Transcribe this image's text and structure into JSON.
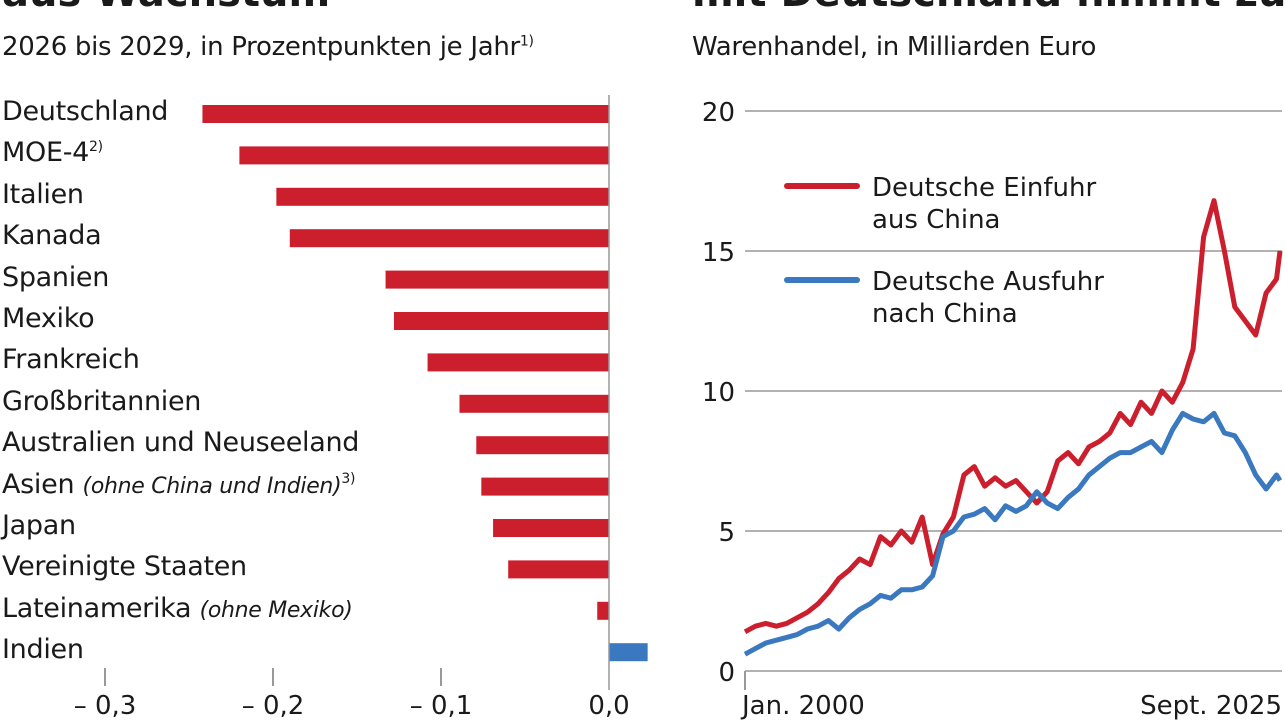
{
  "left": {
    "title": "aus Wachstum",
    "subtitle": "2026 bis 2029, in Prozentpunkten je Jahr",
    "subtitle_note": "1)"
  },
  "right": {
    "title": "mit Deutschland nimmt zu",
    "subtitle": "Warenhandel, in Milliarden Euro"
  },
  "colors": {
    "negative": "#cc1f2d",
    "positive": "#3a78bf",
    "axis": "#999999"
  },
  "chart_data": [
    {
      "type": "bar",
      "orientation": "horizontal",
      "categories": [
        {
          "label": "Deutschland",
          "italic": "",
          "note": ""
        },
        {
          "label": "MOE-4",
          "italic": "",
          "note": "2)"
        },
        {
          "label": "Italien",
          "italic": "",
          "note": ""
        },
        {
          "label": "Kanada",
          "italic": "",
          "note": ""
        },
        {
          "label": "Spanien",
          "italic": "",
          "note": ""
        },
        {
          "label": "Mexiko",
          "italic": "",
          "note": ""
        },
        {
          "label": "Frankreich",
          "italic": "",
          "note": ""
        },
        {
          "label": "Großbritannien",
          "italic": "",
          "note": ""
        },
        {
          "label": "Australien und Neuseeland",
          "italic": "",
          "note": ""
        },
        {
          "label": "Asien ",
          "italic": "(ohne China und Indien)",
          "note": "3)"
        },
        {
          "label": "Japan",
          "italic": "",
          "note": ""
        },
        {
          "label": "Vereinigte Staaten",
          "italic": "",
          "note": ""
        },
        {
          "label": "Lateinamerika ",
          "italic": "(ohne Mexiko)",
          "note": ""
        },
        {
          "label": "Indien",
          "italic": "",
          "note": ""
        }
      ],
      "values": [
        -0.242,
        -0.22,
        -0.198,
        -0.19,
        -0.133,
        -0.128,
        -0.108,
        -0.089,
        -0.079,
        -0.076,
        -0.069,
        -0.06,
        -0.007,
        0.023
      ],
      "xlim": [
        -0.3,
        0.025
      ],
      "xticks": [
        -0.3,
        -0.2,
        -0.1,
        0.0
      ],
      "xtick_labels": [
        "– 0,3",
        "– 0,2",
        "– 0,1",
        "0,0"
      ],
      "grid": false
    },
    {
      "type": "line",
      "ylim": [
        0,
        20
      ],
      "yticks": [
        0,
        5,
        10,
        15,
        20
      ],
      "ytick_labels": [
        "0",
        "5",
        "10",
        "15",
        "20"
      ],
      "xtick_labels": [
        "Jan. 2000",
        "Sept. 2025"
      ],
      "grid": true,
      "legend_placement": "top-left",
      "x": [
        "2000-01",
        "2000-07",
        "2001-01",
        "2001-07",
        "2002-01",
        "2002-07",
        "2003-01",
        "2003-07",
        "2004-01",
        "2004-07",
        "2005-01",
        "2005-07",
        "2006-01",
        "2006-07",
        "2007-01",
        "2007-07",
        "2008-01",
        "2008-07",
        "2009-01",
        "2009-07",
        "2010-01",
        "2010-07",
        "2011-01",
        "2011-07",
        "2012-01",
        "2012-07",
        "2013-01",
        "2013-07",
        "2014-01",
        "2014-07",
        "2015-01",
        "2015-07",
        "2016-01",
        "2016-07",
        "2017-01",
        "2017-07",
        "2018-01",
        "2018-07",
        "2019-01",
        "2019-07",
        "2020-01",
        "2020-07",
        "2021-01",
        "2021-07",
        "2022-01",
        "2022-07",
        "2023-01",
        "2023-07",
        "2024-01",
        "2024-07",
        "2025-01",
        "2025-07",
        "2025-09"
      ],
      "series": [
        {
          "name": "Deutsche Einfuhr aus China",
          "name_lines": [
            "Deutsche Einfuhr",
            "aus China"
          ],
          "color": "#cc1f2d",
          "values": [
            1.4,
            1.6,
            1.7,
            1.6,
            1.7,
            1.9,
            2.1,
            2.4,
            2.8,
            3.3,
            3.6,
            4.0,
            3.8,
            4.8,
            4.5,
            5.0,
            4.6,
            5.5,
            3.8,
            4.9,
            5.5,
            7.0,
            7.3,
            6.6,
            6.9,
            6.6,
            6.8,
            6.4,
            6.0,
            6.4,
            7.5,
            7.8,
            7.4,
            8.0,
            8.2,
            8.5,
            9.2,
            8.8,
            9.6,
            9.2,
            10.0,
            9.6,
            10.3,
            11.5,
            15.5,
            16.8,
            15.0,
            13.0,
            12.5,
            12.0,
            13.5,
            14.0,
            15.0
          ]
        },
        {
          "name": "Deutsche Ausfuhr nach China",
          "name_lines": [
            "Deutsche Ausfuhr",
            "nach China"
          ],
          "color": "#3a78bf",
          "values": [
            0.6,
            0.8,
            1.0,
            1.1,
            1.2,
            1.3,
            1.5,
            1.6,
            1.8,
            1.5,
            1.9,
            2.2,
            2.4,
            2.7,
            2.6,
            2.9,
            2.9,
            3.0,
            3.4,
            4.8,
            5.0,
            5.5,
            5.6,
            5.8,
            5.4,
            5.9,
            5.7,
            5.9,
            6.4,
            6.0,
            5.8,
            6.2,
            6.5,
            7.0,
            7.3,
            7.6,
            7.8,
            7.8,
            8.0,
            8.2,
            7.8,
            8.6,
            9.2,
            9.0,
            8.9,
            9.2,
            8.5,
            8.4,
            7.8,
            7.0,
            6.5,
            7.0,
            6.8
          ]
        }
      ]
    }
  ]
}
